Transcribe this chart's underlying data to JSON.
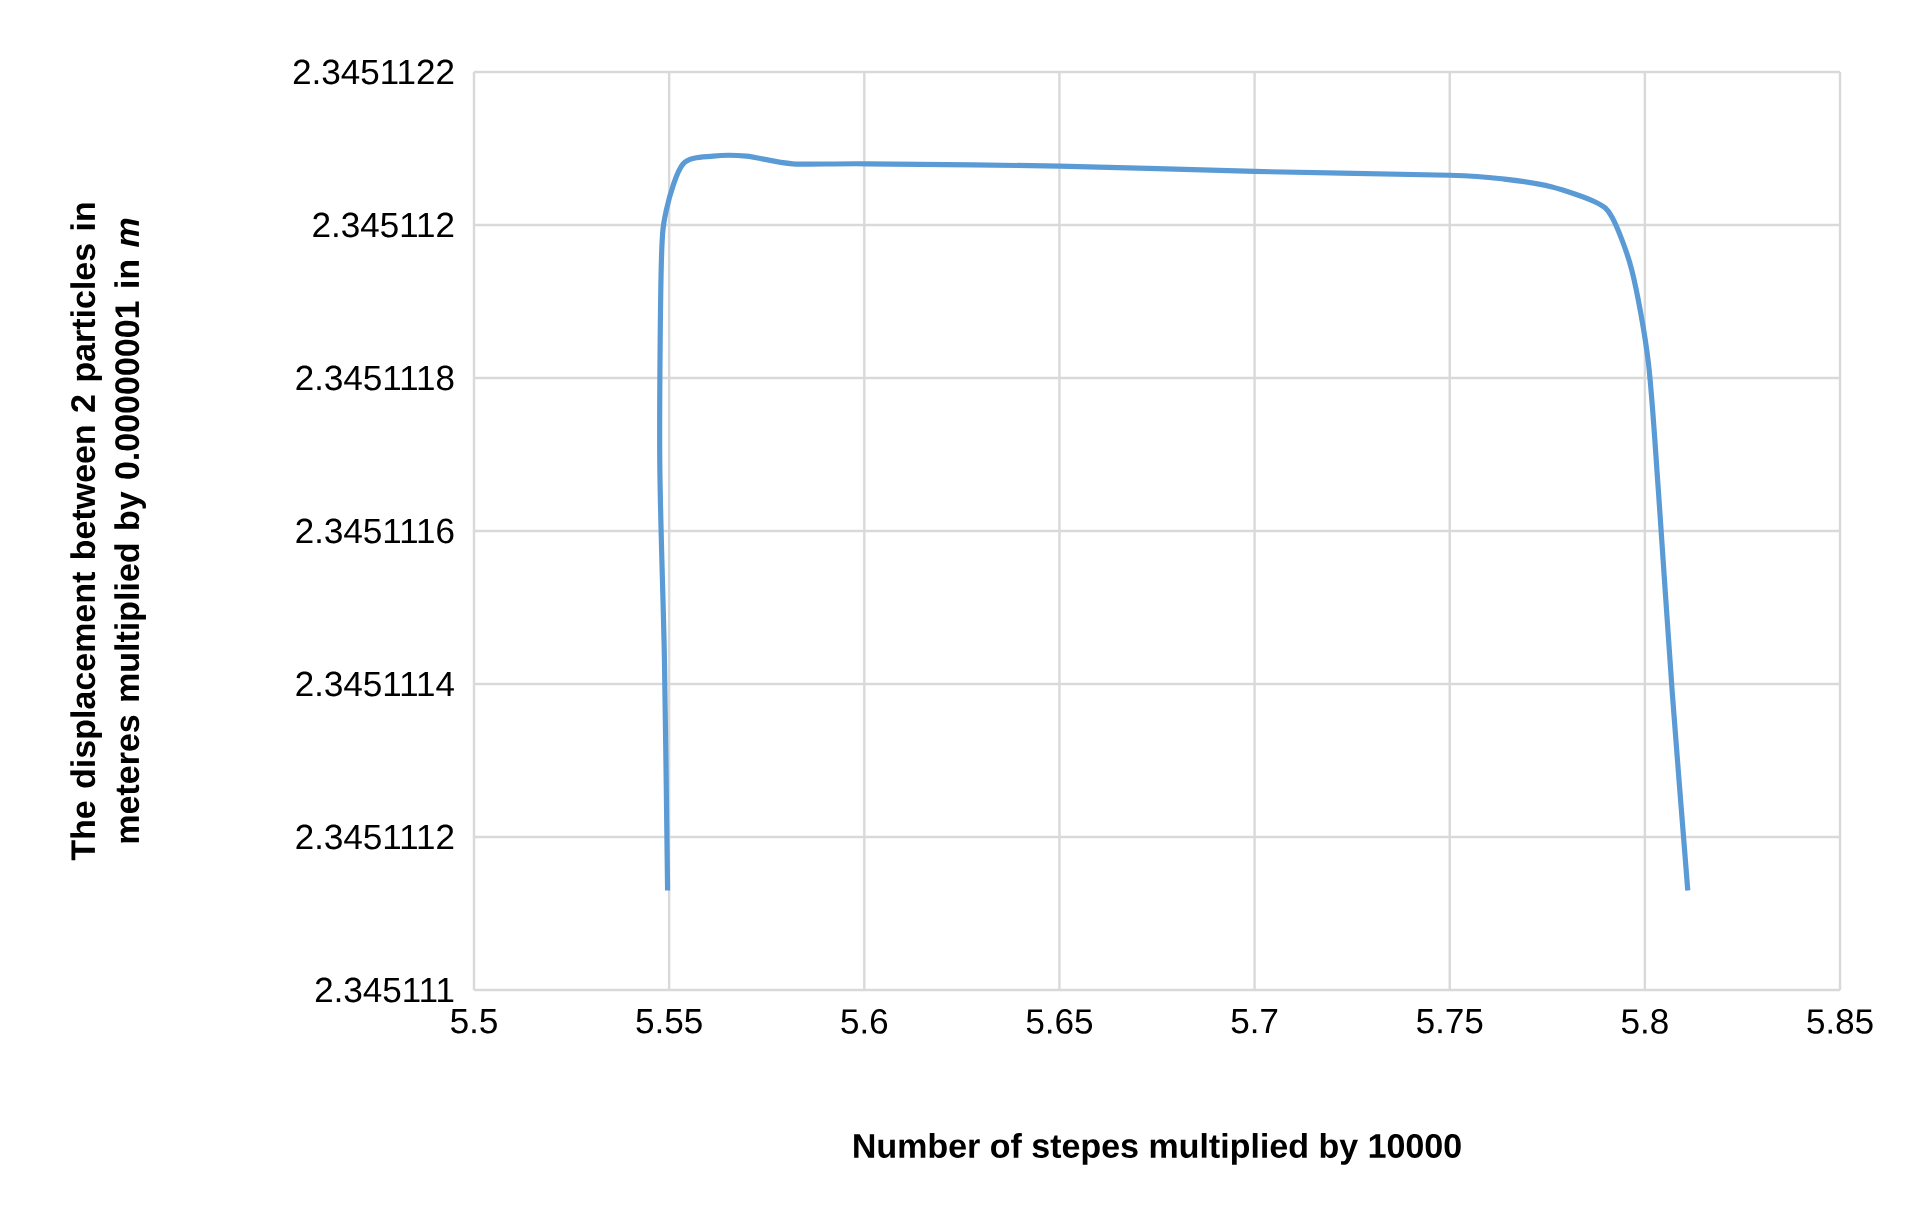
{
  "chart_data": {
    "type": "line",
    "xlabel": "Number of stepes multiplied by 10000",
    "ylabel": "The displacement between 2 particles in meteres multiplied by 0.00000001 in *m*",
    "x": [
      5.5496,
      5.5488,
      5.5476,
      5.548,
      5.5493,
      5.5536,
      5.5613,
      5.5698,
      5.5817,
      5.6005,
      5.65,
      5.7,
      5.75,
      5.764,
      5.776,
      5.7873,
      5.7916,
      5.7967,
      5.8009,
      5.8035,
      5.807,
      5.811
    ],
    "series": [
      {
        "color": "#5b9bd5",
        "values": [
          2.34511113,
          2.34511143,
          2.34511169,
          2.34511195,
          2.34511202,
          2.34511208,
          2.34511209,
          2.34511209,
          2.34511208,
          2.34511208,
          2.345112077,
          2.34511207,
          2.345112065,
          2.34511206,
          2.34511205,
          2.34511203,
          2.34511201,
          2.34511194,
          2.34511182,
          2.34511165,
          2.34511139,
          2.34511113
        ]
      }
    ],
    "xlim": [
      5.5,
      5.85
    ],
    "xticks": [
      5.5,
      5.55,
      5.6,
      5.65,
      5.7,
      5.75,
      5.8,
      5.85
    ],
    "ylim": [
      2.345111,
      2.3451122
    ],
    "yticks": [
      2.345111,
      2.3451112,
      2.3451114,
      2.3451116,
      2.3451118,
      2.345112,
      2.3451122
    ],
    "grid": true,
    "marker": "none",
    "line_style": "solid"
  }
}
